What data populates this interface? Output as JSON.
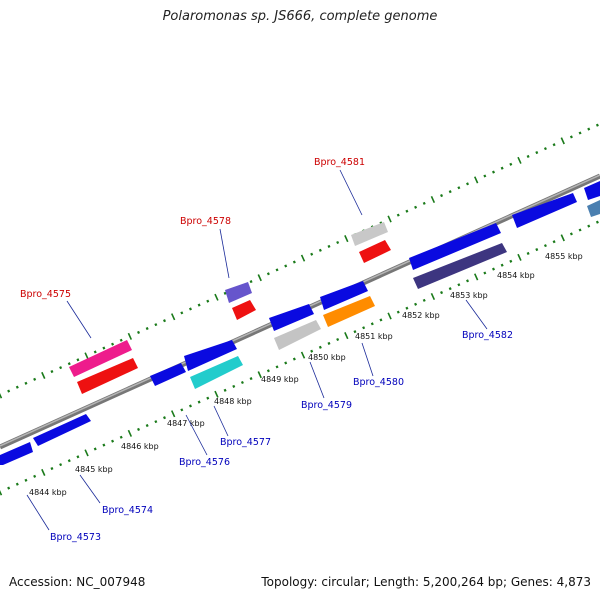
{
  "title": "Polaromonas sp. JS666, complete genome",
  "footer": {
    "accession": "Accession: NC_007948",
    "summary": "Topology: circular; Length: 5,200,264 bp; Genes: 4,873"
  },
  "colors": {
    "backbone": "#8a8a8a",
    "ticks": "#1a7a1a",
    "label_top": "#cc0000",
    "label_bottom": "#0000bb",
    "leader": "#2233aa"
  },
  "kbp_labels": [
    "4844 kbp",
    "4845 kbp",
    "4846 kbp",
    "4847 kbp",
    "4848 kbp",
    "4849 kbp",
    "4850 kbp",
    "4851 kbp",
    "4852 kbp",
    "4853 kbp",
    "4854 kbp",
    "4855 kbp"
  ],
  "gene_labels_top": [
    "Bpro_4575",
    "Bpro_4578",
    "Bpro_4581"
  ],
  "gene_labels_bottom": [
    "Bpro_4573",
    "Bpro_4574",
    "Bpro_4576",
    "Bpro_4577",
    "Bpro_4579",
    "Bpro_4580",
    "Bpro_4582"
  ]
}
